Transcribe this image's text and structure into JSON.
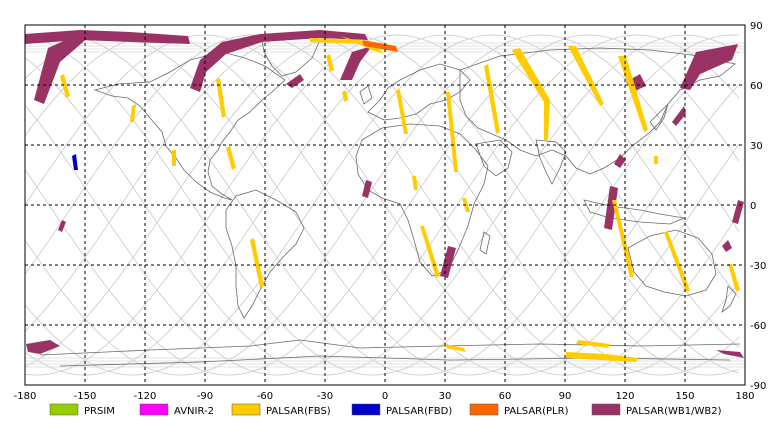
{
  "map": {
    "x_ticks": [
      "-180",
      "-150",
      "-120",
      "-90",
      "-60",
      "-30",
      "0",
      "30",
      "60",
      "90",
      "120",
      "150",
      "180"
    ],
    "y_ticks": [
      "90",
      "60",
      "30",
      "0",
      "-30",
      "-60",
      "-90"
    ],
    "colors": {
      "grid": "#000000",
      "orbit": "#c8c8c8",
      "coast": "#6a6a6a",
      "frame": "#000000"
    }
  },
  "legend": [
    {
      "label": "PRSIM",
      "color": "#99cc00"
    },
    {
      "label": "AVNIR-2",
      "color": "#ff00ff"
    },
    {
      "label": "PALSAR(FBS)",
      "color": "#ffcc00"
    },
    {
      "label": "PALSAR(FBD)",
      "color": "#0000cc"
    },
    {
      "label": "PALSAR(PLR)",
      "color": "#ff6600"
    },
    {
      "label": "PALSAR(WB1/WB2)",
      "color": "#993366"
    }
  ]
}
